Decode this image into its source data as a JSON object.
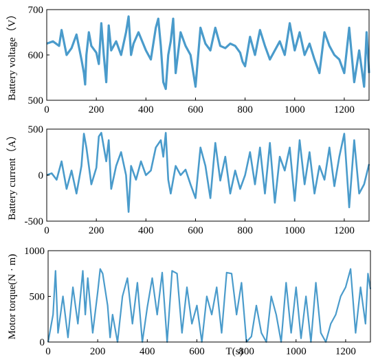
{
  "series_color": "#4a9bcb",
  "chart_data": [
    {
      "type": "line",
      "ylabel": "Battery voltage（V）",
      "xlabel": "",
      "xlim": [
        0,
        1300
      ],
      "ylim": [
        500,
        700
      ],
      "xticks": [
        0,
        200,
        400,
        600,
        800,
        1000,
        1200
      ],
      "yticks": [
        500,
        600,
        700
      ],
      "grid": false,
      "x": [
        0,
        25,
        50,
        60,
        80,
        100,
        120,
        140,
        150,
        155,
        160,
        170,
        180,
        200,
        210,
        220,
        230,
        240,
        250,
        260,
        280,
        300,
        320,
        330,
        340,
        350,
        370,
        400,
        420,
        440,
        450,
        460,
        470,
        480,
        490,
        500,
        510,
        520,
        540,
        560,
        580,
        600,
        620,
        640,
        660,
        680,
        700,
        720,
        740,
        760,
        780,
        790,
        800,
        820,
        840,
        860,
        880,
        900,
        920,
        940,
        960,
        980,
        1000,
        1020,
        1040,
        1060,
        1080,
        1100,
        1120,
        1140,
        1160,
        1180,
        1200,
        1220,
        1240,
        1260,
        1280,
        1290,
        1300
      ],
      "values": [
        625,
        630,
        620,
        655,
        600,
        615,
        645,
        590,
        560,
        535,
        600,
        650,
        620,
        605,
        580,
        670,
        600,
        540,
        665,
        610,
        630,
        600,
        650,
        685,
        600,
        625,
        650,
        610,
        590,
        660,
        680,
        620,
        540,
        525,
        600,
        630,
        680,
        560,
        650,
        620,
        600,
        530,
        660,
        625,
        610,
        660,
        620,
        615,
        625,
        620,
        605,
        585,
        575,
        640,
        600,
        655,
        620,
        590,
        610,
        630,
        600,
        670,
        610,
        650,
        600,
        625,
        590,
        560,
        650,
        620,
        600,
        590,
        560,
        660,
        540,
        610,
        530,
        650,
        560
      ]
    },
    {
      "type": "line",
      "ylabel": "Battery current（A）",
      "xlabel": "",
      "xlim": [
        0,
        1300
      ],
      "ylim": [
        -500,
        500
      ],
      "xticks": [
        0,
        200,
        400,
        600,
        800,
        1000,
        1200
      ],
      "yticks": [
        -500,
        0,
        500
      ],
      "grid": false,
      "x": [
        0,
        20,
        40,
        60,
        80,
        100,
        120,
        140,
        150,
        160,
        180,
        200,
        210,
        220,
        240,
        250,
        260,
        280,
        300,
        320,
        330,
        340,
        360,
        380,
        400,
        420,
        440,
        460,
        470,
        480,
        490,
        500,
        520,
        540,
        560,
        580,
        600,
        620,
        640,
        660,
        680,
        700,
        720,
        740,
        760,
        780,
        800,
        820,
        840,
        860,
        880,
        900,
        920,
        940,
        960,
        980,
        1000,
        1020,
        1040,
        1060,
        1080,
        1100,
        1120,
        1140,
        1160,
        1180,
        1200,
        1220,
        1240,
        1260,
        1280,
        1300
      ],
      "values": [
        0,
        20,
        -50,
        150,
        -150,
        50,
        -200,
        100,
        450,
        300,
        -100,
        80,
        420,
        460,
        150,
        380,
        -150,
        100,
        250,
        0,
        -400,
        100,
        -50,
        150,
        0,
        50,
        300,
        380,
        200,
        460,
        -50,
        -200,
        100,
        0,
        60,
        -100,
        -250,
        300,
        100,
        -250,
        350,
        -60,
        200,
        -200,
        50,
        -150,
        0,
        250,
        -100,
        300,
        -200,
        350,
        -300,
        200,
        50,
        300,
        -280,
        380,
        -100,
        250,
        -200,
        100,
        -50,
        300,
        -120,
        200,
        450,
        -350,
        380,
        -200,
        -100,
        120
      ]
    },
    {
      "type": "line",
      "ylabel": "Motor torque(N · m)",
      "xlabel": "T(s)",
      "xlim": [
        0,
        1300
      ],
      "ylim": [
        0,
        1000
      ],
      "xticks": [
        0,
        200,
        400,
        600,
        800,
        1000,
        1200
      ],
      "yticks": [
        0,
        500,
        1000
      ],
      "grid": false,
      "x": [
        0,
        20,
        30,
        40,
        60,
        80,
        100,
        120,
        140,
        150,
        160,
        180,
        200,
        210,
        220,
        240,
        250,
        260,
        280,
        300,
        320,
        340,
        360,
        380,
        400,
        420,
        440,
        460,
        480,
        500,
        520,
        540,
        560,
        580,
        600,
        620,
        640,
        660,
        680,
        700,
        720,
        740,
        760,
        780,
        800,
        820,
        840,
        860,
        880,
        900,
        920,
        940,
        960,
        980,
        1000,
        1020,
        1040,
        1060,
        1080,
        1100,
        1120,
        1140,
        1160,
        1180,
        1200,
        1220,
        1240,
        1260,
        1280,
        1290,
        1300
      ],
      "values": [
        0,
        300,
        780,
        100,
        500,
        50,
        600,
        200,
        780,
        300,
        700,
        100,
        550,
        800,
        750,
        400,
        50,
        300,
        0,
        500,
        700,
        200,
        650,
        0,
        380,
        700,
        300,
        760,
        0,
        780,
        750,
        100,
        600,
        200,
        400,
        0,
        500,
        300,
        600,
        100,
        760,
        750,
        300,
        650,
        0,
        60,
        400,
        100,
        0,
        500,
        300,
        0,
        650,
        100,
        600,
        40,
        500,
        0,
        650,
        100,
        0,
        200,
        300,
        500,
        600,
        800,
        100,
        600,
        200,
        750,
        580
      ]
    }
  ]
}
